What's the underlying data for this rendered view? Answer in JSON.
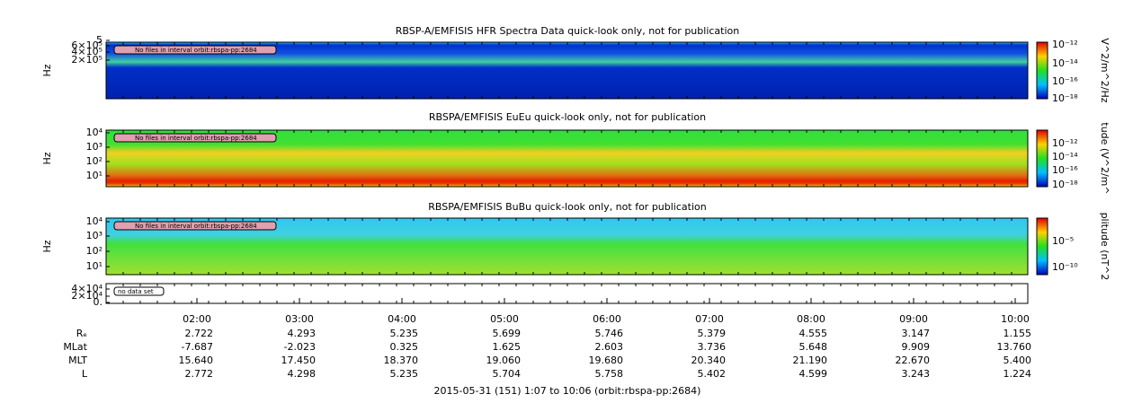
{
  "panels": [
    {
      "title": "RBSP-A/EMFISIS  HFR Spectra Data quick-look only, not for publication",
      "axis_label": "Hz",
      "y_ticks": [
        "5",
        "6×10⁵",
        "4×10⁵",
        "2×10⁵"
      ],
      "colorbar_label": "V^2/m^2/Hz",
      "colorbar_ticks": [
        "10⁻¹²",
        "10⁻¹⁴",
        "10⁻¹⁶",
        "10⁻¹⁸"
      ],
      "note": "No files in interval orbit:rbspa-pp:2684"
    },
    {
      "title": "RBSPA/EMFISIS  EuEu quick-look only, not for publication",
      "axis_label": "Hz",
      "y_ticks": [
        "10⁴",
        "10³",
        "10²",
        "10¹"
      ],
      "colorbar_label": "tude (V^2/m^",
      "colorbar_ticks": [
        "10⁻¹²",
        "10⁻¹⁴",
        "10⁻¹⁶",
        "10⁻¹⁸"
      ],
      "note": "No files in interval orbit:rbspa-pp:2684"
    },
    {
      "title": "RBSPA/EMFISIS  BuBu quick-look only, not for publication",
      "axis_label": "Hz",
      "y_ticks": [
        "10⁴",
        "10³",
        "10²",
        "10¹"
      ],
      "colorbar_label": "plitude (nT^2",
      "colorbar_ticks": [
        "10⁻⁵",
        "10⁻¹⁰"
      ],
      "note": "No files in interval orbit:rbspa-pp:2684"
    },
    {
      "y_ticks": [
        "4×10⁴",
        "2×10⁴",
        "0."
      ],
      "note": "no data set"
    }
  ],
  "time_ticks": [
    "02:00",
    "03:00",
    "04:00",
    "05:00",
    "06:00",
    "07:00",
    "08:00",
    "09:00",
    "10:00"
  ],
  "ephemeris": [
    {
      "label": "Rₑ",
      "values": [
        "2.722",
        "4.293",
        "5.235",
        "5.699",
        "5.746",
        "5.379",
        "4.555",
        "3.147",
        "1.155"
      ]
    },
    {
      "label": "MLat",
      "values": [
        "-7.687",
        "-2.023",
        "0.325",
        "1.625",
        "2.603",
        "3.736",
        "5.648",
        "9.909",
        "13.760"
      ]
    },
    {
      "label": "MLT",
      "values": [
        "15.640",
        "17.450",
        "18.370",
        "19.060",
        "19.680",
        "20.340",
        "21.190",
        "22.670",
        "5.400"
      ]
    },
    {
      "label": "L",
      "values": [
        "2.772",
        "4.298",
        "5.235",
        "5.704",
        "5.758",
        "5.402",
        "4.599",
        "3.243",
        "1.224"
      ]
    }
  ],
  "footer": "2015-05-31 (151) 1:07 to 10:06 (orbit:rbspa-pp:2684)"
}
